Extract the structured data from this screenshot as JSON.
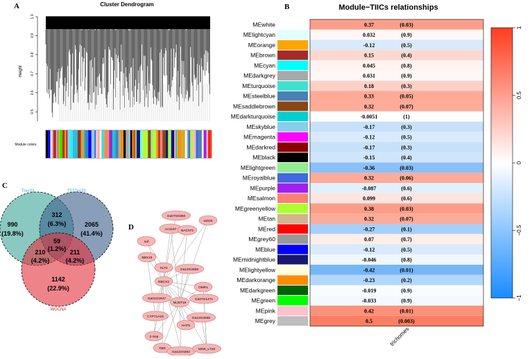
{
  "panels": {
    "a": {
      "letter": "A",
      "title": "Cluster Dendrogram",
      "ylabel": "Height",
      "yticks": [
        "0.5",
        "0.6",
        "0.7",
        "0.8",
        "0.9",
        "1.0"
      ],
      "colors_label": "Module colors"
    },
    "b": {
      "letter": "B",
      "title": "Module−TIICs relationships",
      "xlabel": "trichomes"
    },
    "c": {
      "letter": "C",
      "set_labels": [
        "Trev33",
        "TS72ex33",
        "WGCNA"
      ],
      "regions": [
        {
          "count": "990",
          "pct": "(19.8%)"
        },
        {
          "count": "312",
          "pct": "(6.3%)"
        },
        {
          "count": "2065",
          "pct": "(41.4%)"
        },
        {
          "count": "59",
          "pct": "(1.2%)"
        },
        {
          "count": "210",
          "pct": "(4.2%)"
        },
        {
          "count": "211",
          "pct": "(4.2%)"
        },
        {
          "count": "1142",
          "pct": "(22.9%)"
        }
      ]
    },
    "d": {
      "letter": "D",
      "nodes": [
        "saf",
        "ccr1167",
        "Ga07G0369",
        "wdr26",
        "BBX19",
        "NAC072",
        "XLT2",
        "Ga12G2869",
        "RBCX2",
        "OMR1",
        "Ga01G2647",
        "NUDT19",
        "Ga07G1471",
        "CYP71A15",
        "2-Sep",
        "HAT5",
        "Ga12G2866",
        "TBR",
        "Ga11G0262",
        "MIMI_L729"
      ]
    }
  },
  "chart_data": {
    "type": "heatmap",
    "title": "Module−TIICs relationships",
    "column": "trichomes",
    "rows": [
      {
        "module": "MEwhite",
        "color": "#ffffff",
        "r": "0.37",
        "p": "(0.03)"
      },
      {
        "module": "MElightcyan",
        "color": "#e0ffff",
        "r": "0.032",
        "p": "(0.9)"
      },
      {
        "module": "MEorange",
        "color": "#ffa500",
        "r": "-0.12",
        "p": "(0.5)"
      },
      {
        "module": "MEbrown",
        "color": "#a52a2a",
        "r": "0.15",
        "p": "(0.4)"
      },
      {
        "module": "MEcyan",
        "color": "#00ffff",
        "r": "0.045",
        "p": "(0.8)"
      },
      {
        "module": "MEdarkgrey",
        "color": "#a9a9a9",
        "r": "0.031",
        "p": "(0.9)"
      },
      {
        "module": "MEturquoise",
        "color": "#40e0d0",
        "r": "0.18",
        "p": "(0.3)"
      },
      {
        "module": "MEsteelblue",
        "color": "#4682b4",
        "r": "0.33",
        "p": "(0.05)"
      },
      {
        "module": "MEsaddlebrown",
        "color": "#8b4513",
        "r": "0.32",
        "p": "(0.07)"
      },
      {
        "module": "MEdarkturquoise",
        "color": "#00ced1",
        "r": "-0.0051",
        "p": "(1)"
      },
      {
        "module": "MEskyblue",
        "color": "#87ceeb",
        "r": "-0.17",
        "p": "(0.3)"
      },
      {
        "module": "MEmagenta",
        "color": "#ff00ff",
        "r": "-0.12",
        "p": "(0.5)"
      },
      {
        "module": "MEdarkred",
        "color": "#8b0000",
        "r": "-0.17",
        "p": "(0.3)"
      },
      {
        "module": "MEblack",
        "color": "#000000",
        "r": "-0.15",
        "p": "(0.4)"
      },
      {
        "module": "MElightgreen",
        "color": "#90ee90",
        "r": "-0.36",
        "p": "(0.03)"
      },
      {
        "module": "MEroyalblue",
        "color": "#4169e1",
        "r": "0.32",
        "p": "(0.06)"
      },
      {
        "module": "MEpurple",
        "color": "#a020f0",
        "r": "-0.087",
        "p": "(0.6)"
      },
      {
        "module": "MEsalmon",
        "color": "#fa8072",
        "r": "0.099",
        "p": "(0.6)"
      },
      {
        "module": "MEgreenyellow",
        "color": "#adff2f",
        "r": "0.38",
        "p": "(0.03)"
      },
      {
        "module": "MEtan",
        "color": "#d2b48c",
        "r": "0.32",
        "p": "(0.07)"
      },
      {
        "module": "MEred",
        "color": "#ff0000",
        "r": "-0.27",
        "p": "(0.1)"
      },
      {
        "module": "MEgrey60",
        "color": "#999999",
        "r": "0.07",
        "p": "(0.7)"
      },
      {
        "module": "MEblue",
        "color": "#0000ff",
        "r": "-0.12",
        "p": "(0.5)"
      },
      {
        "module": "MEmidnightblue",
        "color": "#191970",
        "r": "-0.046",
        "p": "(0.8)"
      },
      {
        "module": "MElightyellow",
        "color": "#ffffe0",
        "r": "-0.42",
        "p": "(0.01)"
      },
      {
        "module": "MEdarkorange",
        "color": "#ff8c00",
        "r": "-0.23",
        "p": "(0.2)"
      },
      {
        "module": "MEdarkgreen",
        "color": "#006400",
        "r": "-0.019",
        "p": "(0.9)"
      },
      {
        "module": "MEgreen",
        "color": "#00ff00",
        "r": "-0.033",
        "p": "(0.9)"
      },
      {
        "module": "MEpink",
        "color": "#ffc0cb",
        "r": "0.42",
        "p": "(0.01)"
      },
      {
        "module": "MEgrey",
        "color": "#bebebe",
        "r": "0.5",
        "p": "(0.003)"
      }
    ],
    "colorbar": {
      "min": -1,
      "max": 1,
      "ticks": [
        "1",
        "0.5",
        "0",
        "−0.5",
        "−1"
      ]
    }
  }
}
